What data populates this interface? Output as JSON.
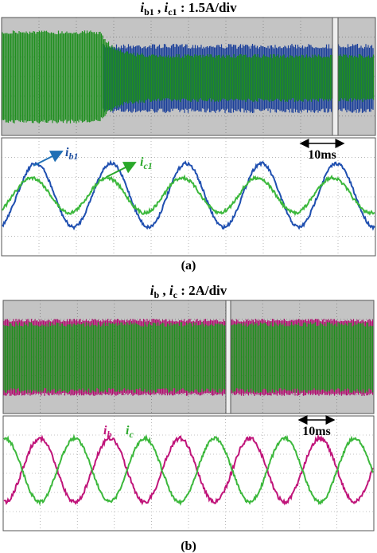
{
  "panels": [
    {
      "title": {
        "var1": "i",
        "sub1": "b1",
        "sep": " , ",
        "var2": "i",
        "sub2": "c1",
        "scale": " : 1.5A/div"
      },
      "labels": [
        {
          "var": "i",
          "sub": "b1"
        },
        {
          "var": "i",
          "sub": "c1"
        }
      ],
      "timescale": "10ms",
      "caption": "(a)"
    },
    {
      "title": {
        "var1": "i",
        "sub1": "b",
        "sep": " , ",
        "var2": "i",
        "sub2": "c",
        "scale": " : 2A/div"
      },
      "labels": [
        {
          "var": "i",
          "sub": "b"
        },
        {
          "var": "i",
          "sub": "c"
        }
      ],
      "timescale": "10ms",
      "caption": "(b)"
    }
  ]
}
